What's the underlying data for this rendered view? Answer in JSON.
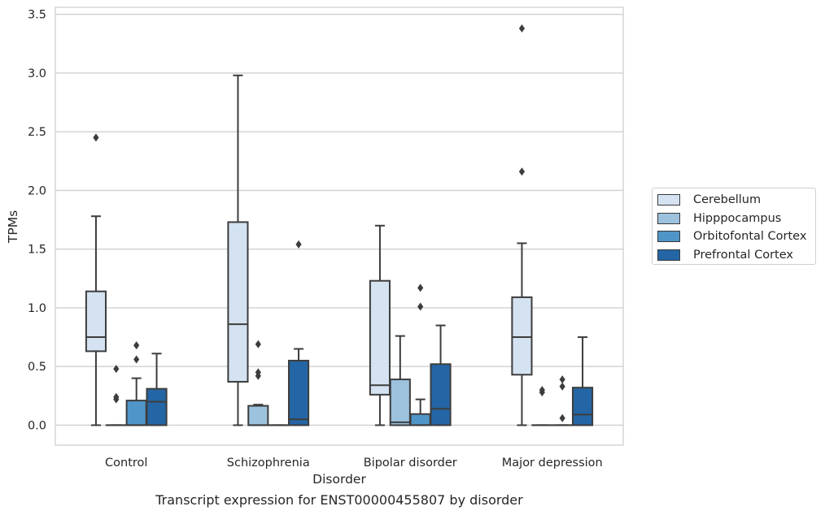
{
  "caption": "Transcript expression for ENST00000455807 by disorder",
  "chart_data": {
    "type": "boxplot",
    "title": "",
    "xlabel": "Disorder",
    "ylabel": "TPMs",
    "ylim": [
      -0.17,
      3.56
    ],
    "yticks": [
      0.0,
      0.5,
      1.0,
      1.5,
      2.0,
      2.5,
      3.0,
      3.5
    ],
    "ytick_labels": [
      "0.0",
      "0.5",
      "1.0",
      "1.5",
      "2.0",
      "2.5",
      "3.0",
      "3.5"
    ],
    "grid": "horizontal",
    "legend_position": "center-right outside",
    "categories": [
      "Control",
      "Schizophrenia",
      "Bipolar disorder",
      "Major depression"
    ],
    "series": [
      {
        "name": "Cerebellum",
        "color": "#d4e2f1",
        "boxes": [
          {
            "whislo": 0.0,
            "q1": 0.63,
            "median": 0.75,
            "q3": 1.14,
            "whishi": 1.78,
            "fliers": [
              2.45
            ]
          },
          {
            "whislo": 0.0,
            "q1": 0.37,
            "median": 0.86,
            "q3": 1.73,
            "whishi": 2.98,
            "fliers": []
          },
          {
            "whislo": 0.0,
            "q1": 0.26,
            "median": 0.34,
            "q3": 1.23,
            "whishi": 1.7,
            "fliers": []
          },
          {
            "whislo": 0.0,
            "q1": 0.43,
            "median": 0.75,
            "q3": 1.09,
            "whishi": 1.55,
            "fliers": [
              2.16,
              3.38
            ]
          }
        ]
      },
      {
        "name": "Hipppocampus",
        "color": "#9cc2dd",
        "boxes": [
          {
            "whislo": 0.0,
            "q1": 0.0,
            "median": 0.0,
            "q3": 0.0,
            "whishi": 0.0,
            "fliers": [
              0.22,
              0.24,
              0.48
            ]
          },
          {
            "whislo": 0.0,
            "q1": 0.0,
            "median": 0.0,
            "q3": 0.165,
            "whishi": 0.175,
            "fliers": [
              0.42,
              0.45,
              0.69
            ]
          },
          {
            "whislo": 0.0,
            "q1": 0.0,
            "median": 0.025,
            "q3": 0.39,
            "whishi": 0.76,
            "fliers": []
          },
          {
            "whislo": 0.0,
            "q1": 0.0,
            "median": 0.0,
            "q3": 0.0,
            "whishi": 0.0,
            "fliers": [
              0.28,
              0.3
            ]
          }
        ]
      },
      {
        "name": "Orbitofontal Cortex",
        "color": "#5095c7",
        "boxes": [
          {
            "whislo": 0.0,
            "q1": 0.0,
            "median": 0.0,
            "q3": 0.21,
            "whishi": 0.4,
            "fliers": [
              0.56,
              0.68
            ]
          },
          {
            "whislo": 0.0,
            "q1": 0.0,
            "median": 0.0,
            "q3": 0.0,
            "whishi": 0.0,
            "fliers": []
          },
          {
            "whislo": 0.0,
            "q1": 0.0,
            "median": 0.0,
            "q3": 0.095,
            "whishi": 0.22,
            "fliers": [
              1.01,
              1.17
            ]
          },
          {
            "whislo": 0.0,
            "q1": 0.0,
            "median": 0.0,
            "q3": 0.0,
            "whishi": 0.0,
            "fliers": [
              0.06,
              0.33,
              0.39
            ]
          }
        ]
      },
      {
        "name": "Prefrontal Cortex",
        "color": "#2466a5",
        "boxes": [
          {
            "whislo": 0.0,
            "q1": 0.0,
            "median": 0.2,
            "q3": 0.31,
            "whishi": 0.61,
            "fliers": []
          },
          {
            "whislo": 0.0,
            "q1": 0.0,
            "median": 0.05,
            "q3": 0.55,
            "whishi": 0.65,
            "fliers": [
              1.54
            ]
          },
          {
            "whislo": 0.0,
            "q1": 0.0,
            "median": 0.14,
            "q3": 0.52,
            "whishi": 0.85,
            "fliers": []
          },
          {
            "whislo": 0.0,
            "q1": 0.0,
            "median": 0.09,
            "q3": 0.32,
            "whishi": 0.75,
            "fliers": []
          }
        ]
      }
    ]
  }
}
